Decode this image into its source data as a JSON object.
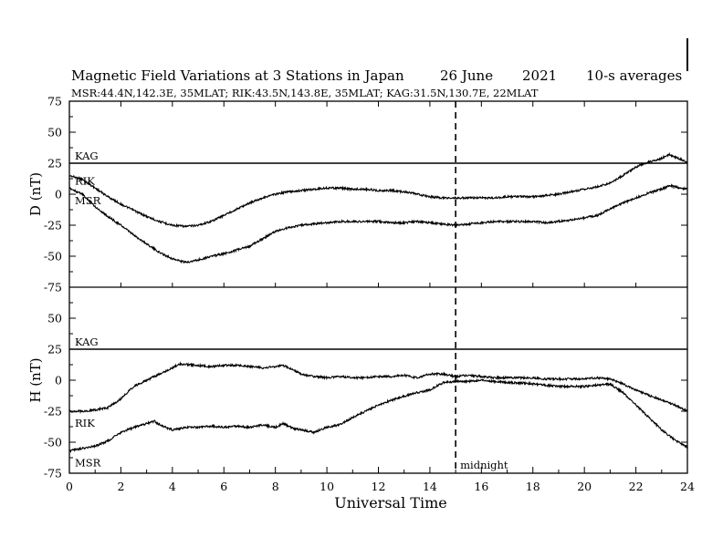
{
  "header": {
    "title": "Magnetic Field Variations at 3 Stations in Japan",
    "date": "26 June",
    "year": "2021",
    "averaging": "10-s averages",
    "stations_line": "MSR:44.4N,142.3E, 35MLAT;  RIK:43.5N,143.8E, 35MLAT;  KAG:31.5N,130.7E, 22MLAT"
  },
  "chart_data": {
    "type": "line",
    "xlabel": "Universal Time",
    "xlim": [
      0,
      24
    ],
    "xticks": [
      0,
      2,
      4,
      6,
      8,
      10,
      12,
      14,
      16,
      18,
      20,
      22,
      24
    ],
    "marker": {
      "x": 15,
      "label": "midnight",
      "style": "dashed"
    },
    "panels": [
      {
        "ylabel": "D (nT)",
        "ylim": [
          -75,
          75
        ],
        "yticks": [
          75,
          50,
          25,
          0,
          -25,
          -50,
          -75
        ],
        "series": [
          {
            "name": "KAG",
            "x": [
              0,
              24
            ],
            "y": [
              25,
              25
            ]
          },
          {
            "name": "RIK",
            "x": [
              0,
              0.5,
              1,
              1.5,
              2,
              2.5,
              3,
              3.5,
              4,
              4.5,
              5,
              5.5,
              6,
              6.5,
              7,
              7.5,
              8,
              8.5,
              9,
              9.5,
              10,
              10.5,
              11,
              11.5,
              12,
              12.5,
              13,
              13.5,
              14,
              14.5,
              15,
              15.5,
              16,
              16.5,
              17,
              17.5,
              18,
              18.5,
              19,
              19.5,
              20,
              20.5,
              21,
              21.5,
              22,
              22.5,
              23,
              23.3,
              23.5,
              24
            ],
            "y": [
              15,
              12,
              5,
              -2,
              -8,
              -13,
              -18,
              -22,
              -25,
              -26,
              -25,
              -22,
              -17,
              -12,
              -7,
              -3,
              0,
              2,
              3,
              4,
              5,
              5,
              4,
              4,
              3,
              3,
              2,
              0,
              -2,
              -3,
              -3,
              -3,
              -3,
              -3,
              -2,
              -2,
              -2,
              -1,
              0,
              2,
              4,
              6,
              9,
              15,
              22,
              26,
              29,
              32,
              30,
              26
            ]
          },
          {
            "name": "MSR",
            "x": [
              0,
              0.5,
              1,
              1.5,
              2,
              2.5,
              3,
              3.5,
              4,
              4.5,
              5,
              5.5,
              6,
              6.5,
              7,
              7.5,
              8,
              8.5,
              9,
              9.5,
              10,
              10.5,
              11,
              11.5,
              12,
              12.5,
              13,
              13.5,
              14,
              14.5,
              15,
              15.5,
              16,
              16.5,
              17,
              17.5,
              18,
              18.5,
              19,
              19.5,
              20,
              20.5,
              21,
              21.5,
              22,
              22.5,
              23,
              23.3,
              23.5,
              24
            ],
            "y": [
              5,
              0,
              -10,
              -18,
              -25,
              -33,
              -40,
              -47,
              -52,
              -55,
              -53,
              -50,
              -48,
              -45,
              -42,
              -36,
              -30,
              -27,
              -25,
              -24,
              -23,
              -22,
              -22,
              -22,
              -22,
              -23,
              -23,
              -22,
              -23,
              -24,
              -25,
              -24,
              -23,
              -22,
              -22,
              -22,
              -22,
              -23,
              -22,
              -21,
              -19,
              -17,
              -12,
              -7,
              -3,
              1,
              4,
              7,
              6,
              4
            ]
          }
        ]
      },
      {
        "ylabel": "H (nT)",
        "ylim": [
          -75,
          75
        ],
        "yticks": [
          75,
          50,
          25,
          0,
          -25,
          -50,
          -75
        ],
        "series": [
          {
            "name": "KAG",
            "x": [
              0,
              24
            ],
            "y": [
              25,
              25
            ]
          },
          {
            "name": "RIK",
            "x": [
              0,
              0.5,
              1,
              1.5,
              2,
              2.5,
              3,
              3.5,
              4,
              4.3,
              5,
              5.5,
              6,
              6.5,
              7,
              7.5,
              8,
              8.3,
              8.7,
              9,
              9.5,
              10,
              10.5,
              11,
              11.5,
              12,
              12.5,
              13,
              13.5,
              14,
              14.5,
              15,
              15.5,
              16,
              16.5,
              17,
              17.5,
              18,
              18.5,
              19,
              19.5,
              20,
              20.5,
              21,
              21.5,
              22,
              22.5,
              23,
              23.5,
              24
            ],
            "y": [
              -25,
              -25,
              -24,
              -22,
              -15,
              -5,
              0,
              5,
              10,
              13,
              12,
              11,
              12,
              12,
              11,
              10,
              11,
              12,
              8,
              5,
              3,
              2,
              3,
              2,
              2,
              3,
              3,
              4,
              2,
              5,
              5,
              3,
              4,
              3,
              2,
              2,
              2,
              2,
              1,
              1,
              1,
              1,
              2,
              1,
              -3,
              -8,
              -12,
              -16,
              -20,
              -25
            ]
          },
          {
            "name": "MSR",
            "x": [
              0,
              0.5,
              1,
              1.5,
              2,
              2.5,
              3,
              3.3,
              3.6,
              4,
              4.5,
              5,
              5.5,
              6,
              6.5,
              7,
              7.5,
              8,
              8.3,
              8.7,
              9,
              9.5,
              10,
              10.5,
              11,
              11.5,
              12,
              12.5,
              13,
              13.5,
              14,
              14.5,
              15,
              15.5,
              16,
              16.5,
              17,
              17.5,
              18,
              18.5,
              19,
              19.5,
              20,
              20.5,
              21,
              21.5,
              22,
              22.5,
              23,
              23.5,
              24
            ],
            "y": [
              -57,
              -55,
              -53,
              -49,
              -42,
              -38,
              -35,
              -33,
              -37,
              -40,
              -38,
              -38,
              -37,
              -38,
              -37,
              -38,
              -36,
              -38,
              -35,
              -39,
              -40,
              -42,
              -38,
              -36,
              -30,
              -25,
              -20,
              -16,
              -13,
              -10,
              -8,
              -2,
              -1,
              -1,
              0,
              -1,
              -2,
              -2,
              -3,
              -4,
              -5,
              -5,
              -5,
              -4,
              -3,
              -10,
              -20,
              -30,
              -40,
              -48,
              -54
            ]
          }
        ]
      }
    ],
    "colors": {
      "line": "#000000",
      "background": "#ffffff"
    }
  }
}
